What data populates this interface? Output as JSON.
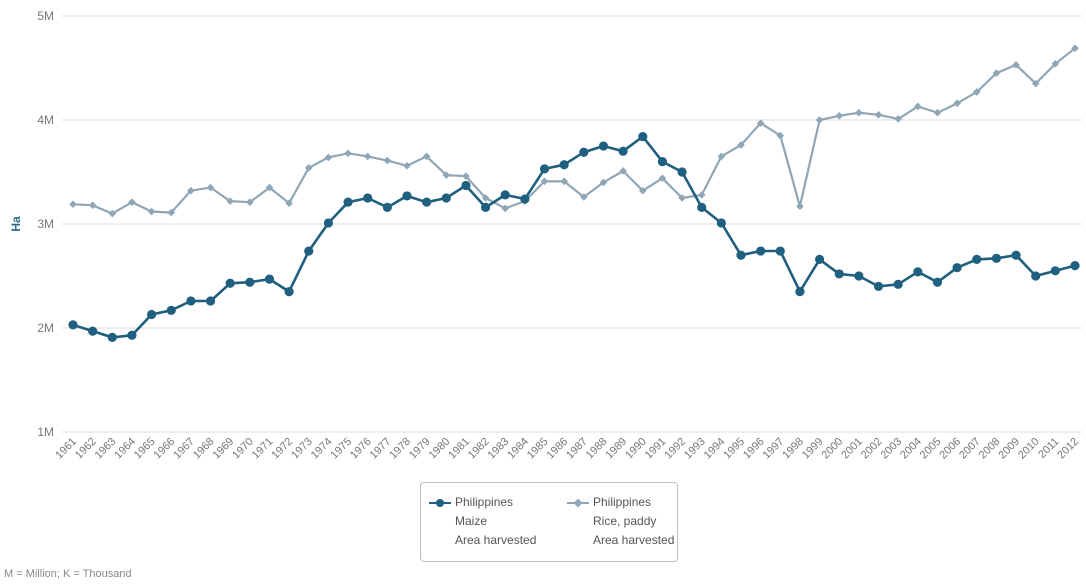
{
  "chart_data": {
    "type": "line",
    "title": "",
    "xlabel": "",
    "ylabel": "Ha",
    "ylim": [
      1000000,
      5000000
    ],
    "y_ticks": [
      {
        "value": 1000000,
        "label": "1M"
      },
      {
        "value": 2000000,
        "label": "2M"
      },
      {
        "value": 3000000,
        "label": "3M"
      },
      {
        "value": 4000000,
        "label": "4M"
      },
      {
        "value": 5000000,
        "label": "5M"
      }
    ],
    "grid": true,
    "legend_position": "bottom",
    "x": [
      "1961",
      "1962",
      "1963",
      "1964",
      "1965",
      "1966",
      "1967",
      "1968",
      "1969",
      "1970",
      "1971",
      "1972",
      "1973",
      "1974",
      "1975",
      "1976",
      "1977",
      "1978",
      "1979",
      "1980",
      "1981",
      "1982",
      "1983",
      "1984",
      "1985",
      "1986",
      "1987",
      "1988",
      "1989",
      "1990",
      "1991",
      "1992",
      "1993",
      "1994",
      "1995",
      "1996",
      "1997",
      "1998",
      "1999",
      "2000",
      "2001",
      "2002",
      "2003",
      "2004",
      "2005",
      "2006",
      "2007",
      "2008",
      "2009",
      "2010",
      "2011",
      "2012"
    ],
    "series": [
      {
        "area": "Philippines",
        "item": "Maize",
        "element": "Area harvested",
        "color": "#1f5f7f",
        "marker": "circle",
        "values": [
          2030000,
          1970000,
          1910000,
          1930000,
          2130000,
          2170000,
          2260000,
          2260000,
          2430000,
          2440000,
          2470000,
          2350000,
          2740000,
          3010000,
          3210000,
          3250000,
          3160000,
          3270000,
          3210000,
          3250000,
          3370000,
          3160000,
          3280000,
          3240000,
          3530000,
          3570000,
          3690000,
          3750000,
          3700000,
          3840000,
          3600000,
          3500000,
          3160000,
          3010000,
          2700000,
          2740000,
          2740000,
          2350000,
          2660000,
          2520000,
          2500000,
          2400000,
          2420000,
          2540000,
          2440000,
          2580000,
          2660000,
          2670000,
          2700000,
          2500000,
          2550000,
          2600000
        ]
      },
      {
        "area": "Philippines",
        "item": "Rice, paddy",
        "element": "Area harvested",
        "color": "#8fa6b6",
        "marker": "diamond",
        "values": [
          3190000,
          3180000,
          3100000,
          3210000,
          3120000,
          3110000,
          3320000,
          3350000,
          3220000,
          3210000,
          3350000,
          3200000,
          3540000,
          3640000,
          3680000,
          3650000,
          3610000,
          3560000,
          3650000,
          3470000,
          3460000,
          3250000,
          3150000,
          3220000,
          3410000,
          3410000,
          3260000,
          3400000,
          3510000,
          3320000,
          3440000,
          3250000,
          3280000,
          3650000,
          3760000,
          3970000,
          3850000,
          3170000,
          4000000,
          4040000,
          4070000,
          4050000,
          4010000,
          4130000,
          4070000,
          4160000,
          4270000,
          4450000,
          4530000,
          4350000,
          4540000,
          4690000
        ]
      }
    ],
    "legend": [
      {
        "line1": "Philippines",
        "line2": "Maize",
        "line3": "Area harvested"
      },
      {
        "line1": "Philippines",
        "line2": "Rice, paddy",
        "line3": "Area harvested"
      }
    ]
  },
  "footnote": "M = Million; K = Thousand"
}
